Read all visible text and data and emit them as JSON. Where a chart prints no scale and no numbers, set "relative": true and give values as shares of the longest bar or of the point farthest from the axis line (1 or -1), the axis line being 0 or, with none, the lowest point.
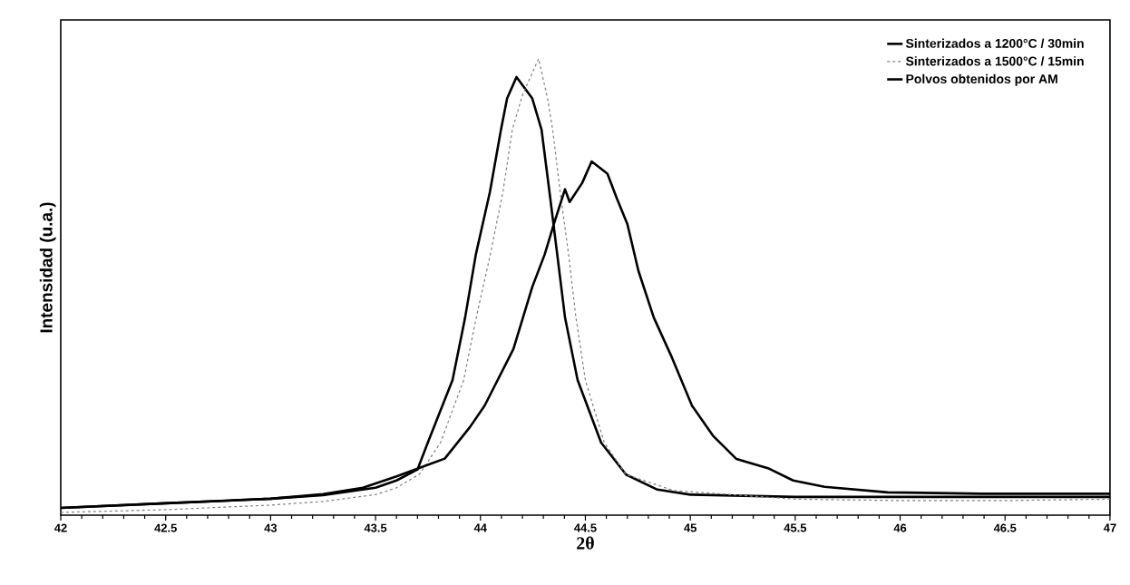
{
  "chart_data": {
    "type": "line",
    "relative": true,
    "xlabel": "2θ",
    "ylabel": "Intensidad (u.a.)",
    "xlim": [
      42,
      47
    ],
    "xticks": [
      42,
      42.5,
      43,
      43.5,
      44,
      44.5,
      45,
      45.5,
      46,
      46.5,
      47
    ],
    "legend": "top right",
    "grid": false,
    "marker": "none",
    "series": [
      {
        "name": "Sinterizados a 1200°C / 30min",
        "color": "#000000",
        "line_style": "solid",
        "x": [
          42,
          42.5,
          43,
          43.25,
          43.5,
          43.6,
          43.7,
          43.75,
          43.867,
          43.927,
          43.978,
          44.045,
          44.098,
          44.127,
          44.172,
          44.247,
          44.291,
          44.329,
          44.366,
          44.403,
          44.463,
          44.575,
          44.694,
          44.843,
          45,
          45.5,
          46,
          46.5,
          47
        ],
        "values": [
          0.016,
          0.026,
          0.036,
          0.044,
          0.06,
          0.076,
          0.1,
          0.16,
          0.296,
          0.433,
          0.571,
          0.708,
          0.845,
          0.913,
          0.96,
          0.913,
          0.845,
          0.708,
          0.571,
          0.433,
          0.296,
          0.159,
          0.089,
          0.056,
          0.045,
          0.04,
          0.04,
          0.04,
          0.04
        ]
      },
      {
        "name": "Sinterizados a 1500°C / 15min",
        "color": "#808080",
        "line_style": "dashed",
        "x": [
          42,
          42.5,
          43,
          43.25,
          43.5,
          43.6,
          43.71,
          43.81,
          43.92,
          43.98,
          44.047,
          44.107,
          44.152,
          44.2,
          44.277,
          44.32,
          44.344,
          44.38,
          44.42,
          44.455,
          44.5,
          44.59,
          44.694,
          44.92,
          45.5,
          46,
          46.5,
          47
        ],
        "values": [
          0.006,
          0.012,
          0.022,
          0.03,
          0.045,
          0.06,
          0.09,
          0.159,
          0.296,
          0.433,
          0.571,
          0.708,
          0.845,
          0.92,
          1,
          0.913,
          0.845,
          0.708,
          0.571,
          0.433,
          0.296,
          0.159,
          0.089,
          0.054,
          0.035,
          0.032,
          0.032,
          0.035
        ]
      },
      {
        "name": "Polvos obtenidos por AM",
        "color": "#000000",
        "line_style": "solid",
        "x": [
          42,
          42.5,
          43,
          43.25,
          43.44,
          43.6,
          43.83,
          43.95,
          44.02,
          44.157,
          44.247,
          44.306,
          44.35,
          44.403,
          44.425,
          44.485,
          44.53,
          44.605,
          44.65,
          44.7,
          44.753,
          44.826,
          44.908,
          45.008,
          45.11,
          45.22,
          45.37,
          45.49,
          45.64,
          45.94,
          46.39,
          47
        ],
        "values": [
          0.016,
          0.026,
          0.036,
          0.046,
          0.06,
          0.085,
          0.124,
          0.193,
          0.24,
          0.364,
          0.5,
          0.571,
          0.638,
          0.714,
          0.686,
          0.728,
          0.775,
          0.748,
          0.694,
          0.638,
          0.535,
          0.433,
          0.35,
          0.24,
          0.173,
          0.123,
          0.103,
          0.076,
          0.062,
          0.05,
          0.047,
          0.047
        ]
      }
    ]
  }
}
